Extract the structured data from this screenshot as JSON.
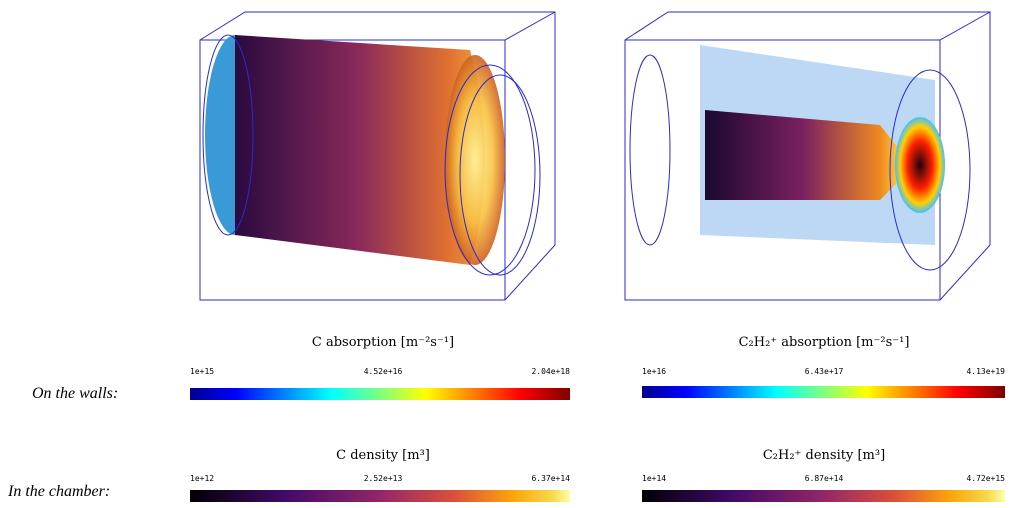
{
  "row_labels": [
    "On the walls:",
    "In the chamber:"
  ],
  "panels": [
    {
      "walls": {
        "title": "C absorption [m⁻²s⁻¹]",
        "ticks": [
          "1e+15",
          "4.52e+16",
          "2.04e+18"
        ]
      },
      "chamber": {
        "title": "C  density [m³]",
        "ticks": [
          "1e+12",
          "2.52e+13",
          "6.37e+14"
        ]
      }
    },
    {
      "walls": {
        "title": "C₂H₂⁺ absorption [m⁻²s⁻¹]",
        "ticks": [
          "1e+16",
          "6.43e+17",
          "4.13e+19"
        ]
      },
      "chamber": {
        "title": "C₂H₂⁺ density [m³]",
        "ticks": [
          "1e+14",
          "6.87e+14",
          "4.72e+15"
        ]
      }
    }
  ]
}
